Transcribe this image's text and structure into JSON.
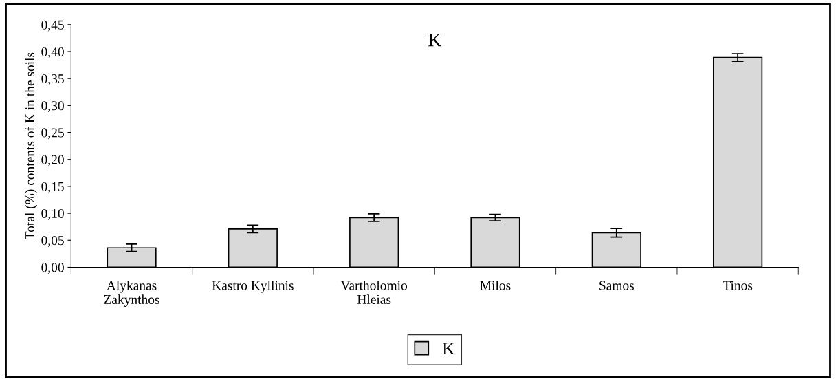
{
  "chart_data": {
    "type": "bar",
    "title": "K",
    "ylabel": "Total (%) contents of K in the soils",
    "categories": [
      "Alykanas\nZakynthos",
      "Kastro Kyllinis",
      "Vartholomio\nHleias",
      "Milos",
      "Samos",
      "Tinos"
    ],
    "series": [
      {
        "name": "K",
        "color": "#d9d9d9",
        "values": [
          0.036,
          0.071,
          0.092,
          0.092,
          0.064,
          0.389
        ],
        "errors": [
          0.007,
          0.007,
          0.007,
          0.006,
          0.008,
          0.007
        ]
      }
    ],
    "ylim": [
      0,
      0.45
    ],
    "yticks": [
      {
        "value": 0,
        "label": "0,00"
      },
      {
        "value": 0.05,
        "label": "0,05"
      },
      {
        "value": 0.1,
        "label": "0,10"
      },
      {
        "value": 0.15,
        "label": "0,15"
      },
      {
        "value": 0.2,
        "label": "0,20"
      },
      {
        "value": 0.25,
        "label": "0,25"
      },
      {
        "value": 0.3,
        "label": "0,30"
      },
      {
        "value": 0.35,
        "label": "0,35"
      },
      {
        "value": 0.4,
        "label": "0,40"
      },
      {
        "value": 0.45,
        "label": "0,45"
      }
    ],
    "grid": false,
    "legend": "bottom"
  }
}
